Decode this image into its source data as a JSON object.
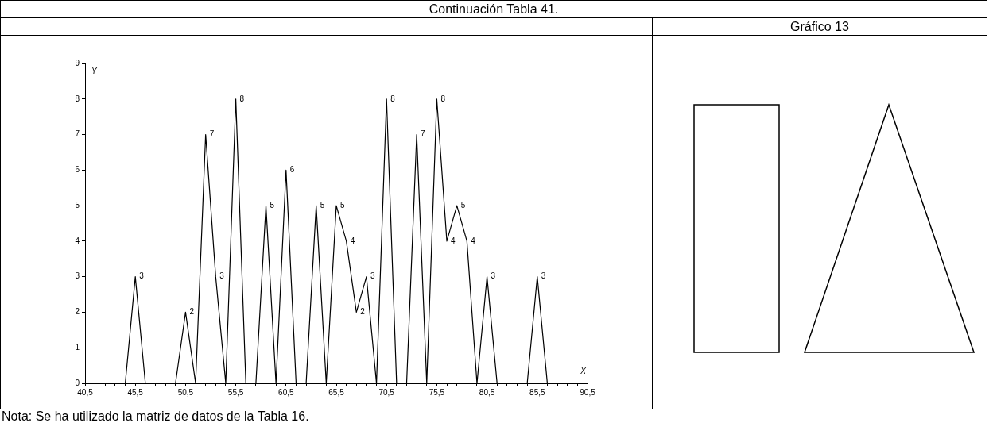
{
  "chart_data": {
    "type": "line",
    "title": "Continuación Tabla 41.",
    "subtitle": "Gráfico 13",
    "xlabel": "X",
    "ylabel": "Y",
    "annotations": [
      "Nota: Se ha utilizado la matriz de datos de la Tabla 16."
    ],
    "x": [
      44.5,
      45.5,
      46.5,
      49.5,
      50.5,
      51.5,
      52.5,
      53.5,
      54.5,
      55.5,
      56.5,
      57.5,
      58.5,
      59.5,
      60.5,
      61.5,
      62.5,
      63.5,
      64.5,
      65.5,
      66.5,
      67.5,
      68.5,
      69.5,
      70.5,
      71.5,
      72.5,
      73.5,
      74.5,
      75.5,
      76.5,
      77.5,
      78.5,
      79.5,
      80.5,
      81.5,
      84.5,
      85.5,
      86.5
    ],
    "values": [
      0,
      3,
      0,
      0,
      2,
      0,
      7,
      3,
      0,
      8,
      0,
      0,
      5,
      0,
      6,
      0,
      0,
      5,
      0,
      5,
      4,
      2,
      3,
      0,
      8,
      0,
      0,
      7,
      0,
      8,
      4,
      5,
      4,
      0,
      3,
      0,
      0,
      3,
      0
    ],
    "value_labels": [
      null,
      "3",
      null,
      null,
      "2",
      null,
      "7",
      "3",
      null,
      "8",
      null,
      null,
      "5",
      null,
      "6",
      null,
      null,
      "5",
      null,
      "5",
      "4",
      "2",
      "3",
      null,
      "8",
      null,
      null,
      "7",
      null,
      "8",
      "4",
      "5",
      "4",
      null,
      "3",
      null,
      null,
      "3",
      null
    ],
    "color": "#000000",
    "marker": "none",
    "line_style": "solid",
    "xlim": [
      40.5,
      90.5
    ],
    "xticks": [
      {
        "value": 40.5,
        "label": "40,5"
      },
      {
        "value": 41.5,
        "label": null
      },
      {
        "value": 42.5,
        "label": null
      },
      {
        "value": 43.5,
        "label": null
      },
      {
        "value": 44.5,
        "label": null
      },
      {
        "value": 45.5,
        "label": "45,5"
      },
      {
        "value": 46.5,
        "label": null
      },
      {
        "value": 47.5,
        "label": null
      },
      {
        "value": 48.5,
        "label": null
      },
      {
        "value": 49.5,
        "label": null
      },
      {
        "value": 50.5,
        "label": "50,5"
      },
      {
        "value": 51.5,
        "label": null
      },
      {
        "value": 52.5,
        "label": null
      },
      {
        "value": 53.5,
        "label": null
      },
      {
        "value": 54.5,
        "label": null
      },
      {
        "value": 55.5,
        "label": "55,5"
      },
      {
        "value": 56.5,
        "label": null
      },
      {
        "value": 57.5,
        "label": null
      },
      {
        "value": 58.5,
        "label": null
      },
      {
        "value": 59.5,
        "label": null
      },
      {
        "value": 60.5,
        "label": "60,5"
      },
      {
        "value": 61.5,
        "label": null
      },
      {
        "value": 62.5,
        "label": null
      },
      {
        "value": 63.5,
        "label": null
      },
      {
        "value": 64.5,
        "label": null
      },
      {
        "value": 65.5,
        "label": "65,5"
      },
      {
        "value": 66.5,
        "label": null
      },
      {
        "value": 67.5,
        "label": null
      },
      {
        "value": 68.5,
        "label": null
      },
      {
        "value": 69.5,
        "label": null
      },
      {
        "value": 70.5,
        "label": "70,5"
      },
      {
        "value": 71.5,
        "label": null
      },
      {
        "value": 72.5,
        "label": null
      },
      {
        "value": 73.5,
        "label": null
      },
      {
        "value": 74.5,
        "label": null
      },
      {
        "value": 75.5,
        "label": "75,5"
      },
      {
        "value": 76.5,
        "label": null
      },
      {
        "value": 77.5,
        "label": null
      },
      {
        "value": 78.5,
        "label": null
      },
      {
        "value": 79.5,
        "label": null
      },
      {
        "value": 80.5,
        "label": "80,5"
      },
      {
        "value": 81.5,
        "label": null
      },
      {
        "value": 82.5,
        "label": null
      },
      {
        "value": 83.5,
        "label": null
      },
      {
        "value": 84.5,
        "label": null
      },
      {
        "value": 85.5,
        "label": "85,5"
      },
      {
        "value": 86.5,
        "label": null
      },
      {
        "value": 87.5,
        "label": null
      },
      {
        "value": 88.5,
        "label": null
      },
      {
        "value": 89.5,
        "label": null
      },
      {
        "value": 90.5,
        "label": "90,5"
      }
    ],
    "ylim": [
      0,
      9
    ],
    "yticks": [
      0,
      1,
      2,
      3,
      4,
      5,
      6,
      7,
      8,
      9
    ]
  }
}
